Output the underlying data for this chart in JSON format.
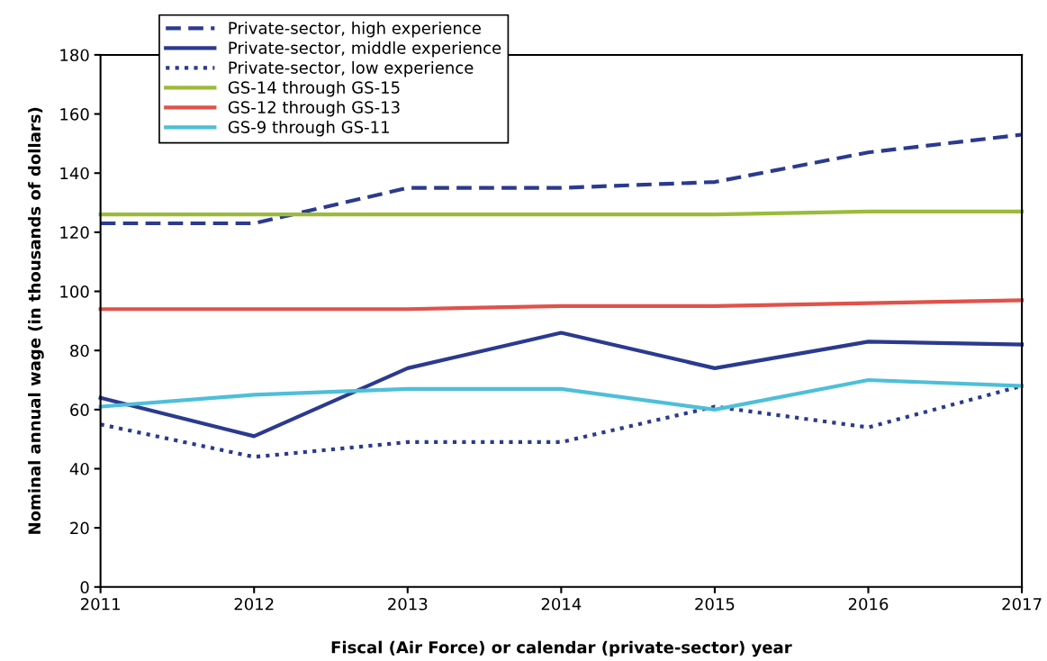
{
  "chart_data": {
    "type": "line",
    "xlabel": "Fiscal (Air Force) or calendar (private-sector) year",
    "ylabel": "Nominal annual wage (in thousands of dollars)",
    "x": [
      2011,
      2012,
      2013,
      2014,
      2015,
      2016,
      2017
    ],
    "xlim": [
      2011,
      2017
    ],
    "xticks": [
      2011,
      2012,
      2013,
      2014,
      2015,
      2016,
      2017
    ],
    "ylim": [
      0,
      180
    ],
    "yticks": [
      0,
      20,
      40,
      60,
      80,
      100,
      120,
      140,
      160,
      180
    ],
    "grid": false,
    "legend": "top left",
    "marker": "none",
    "series": [
      {
        "name": "Private-sector, high experience",
        "color": "#2b3a8f",
        "line_style": "dashed",
        "values": [
          123,
          123,
          135,
          135,
          137,
          147,
          153
        ]
      },
      {
        "name": "Private-sector, middle experience",
        "color": "#2b3a8f",
        "line_style": "solid",
        "values": [
          64,
          51,
          74,
          86,
          74,
          83,
          82
        ]
      },
      {
        "name": "Private-sector, low experience",
        "color": "#2b3a8f",
        "line_style": "dotted",
        "values": [
          55,
          44,
          49,
          49,
          61,
          54,
          68
        ]
      },
      {
        "name": "GS-14 through GS-15",
        "color": "#9bbb3b",
        "line_style": "solid",
        "values": [
          126,
          126,
          126,
          126,
          126,
          127,
          127
        ]
      },
      {
        "name": "GS-12 through GS-13",
        "color": "#e0524a",
        "line_style": "solid",
        "values": [
          94,
          94,
          94,
          95,
          95,
          96,
          97
        ]
      },
      {
        "name": "GS-9 through GS-11",
        "color": "#4dbfd9",
        "line_style": "solid",
        "values": [
          61,
          65,
          67,
          67,
          60,
          70,
          68
        ]
      }
    ]
  }
}
